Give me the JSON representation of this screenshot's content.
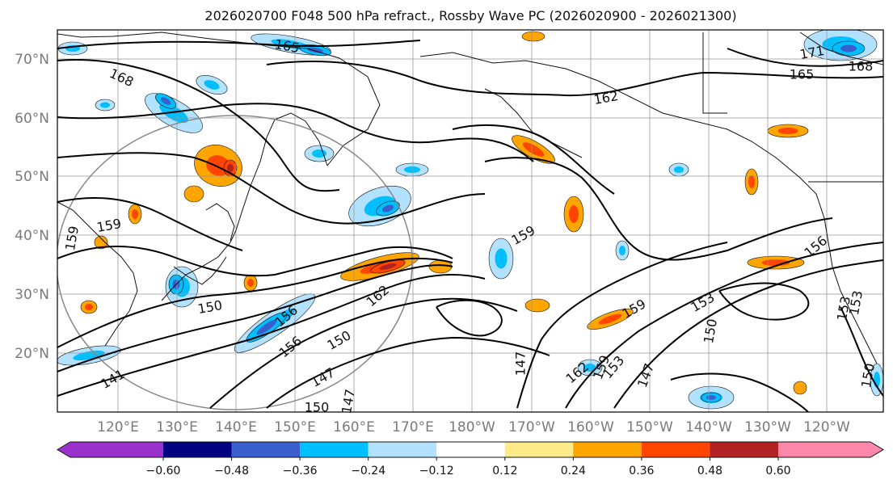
{
  "title": "2026020700 F048 500 hPa refract., Rossby Wave PC (2026020900 - 2026021300)",
  "map": {
    "lat_ticks": [
      "70°N",
      "60°N",
      "50°N",
      "40°N",
      "30°N",
      "20°N"
    ],
    "lon_ticks": [
      "120°E",
      "130°E",
      "140°E",
      "150°E",
      "160°E",
      "170°E",
      "180°W",
      "170°W",
      "160°W",
      "150°W",
      "140°W",
      "130°W",
      "120°W"
    ],
    "contour_labels": [
      {
        "text": "165"
      },
      {
        "text": "168"
      },
      {
        "text": "162"
      },
      {
        "text": "171"
      },
      {
        "text": "165"
      },
      {
        "text": "168"
      },
      {
        "text": "159"
      },
      {
        "text": "159"
      },
      {
        "text": "159"
      },
      {
        "text": "150"
      },
      {
        "text": "156"
      },
      {
        "text": "162"
      },
      {
        "text": "150"
      },
      {
        "text": "147"
      },
      {
        "text": "150"
      },
      {
        "text": "147"
      },
      {
        "text": "153"
      },
      {
        "text": "150"
      },
      {
        "text": "156"
      },
      {
        "text": "153"
      },
      {
        "text": "159"
      },
      {
        "text": "162"
      },
      {
        "text": "147"
      },
      {
        "text": "156"
      },
      {
        "text": "153"
      },
      {
        "text": "159"
      },
      {
        "text": "147"
      },
      {
        "text": "153"
      },
      {
        "text": "150"
      },
      {
        "text": "141"
      }
    ]
  },
  "colorbar": {
    "colors": [
      "#9932cc",
      "#000080",
      "#3a5fcd",
      "#00bfff",
      "#b2e2ff",
      "#ffffff",
      "#ffeb8a",
      "#ffa500",
      "#ff4500",
      "#b22222",
      "#ff88aa"
    ],
    "tick_labels": [
      "−0.60",
      "−0.48",
      "−0.36",
      "−0.24",
      "−0.12",
      "0.12",
      "0.24",
      "0.36",
      "0.48",
      "0.60"
    ]
  }
}
